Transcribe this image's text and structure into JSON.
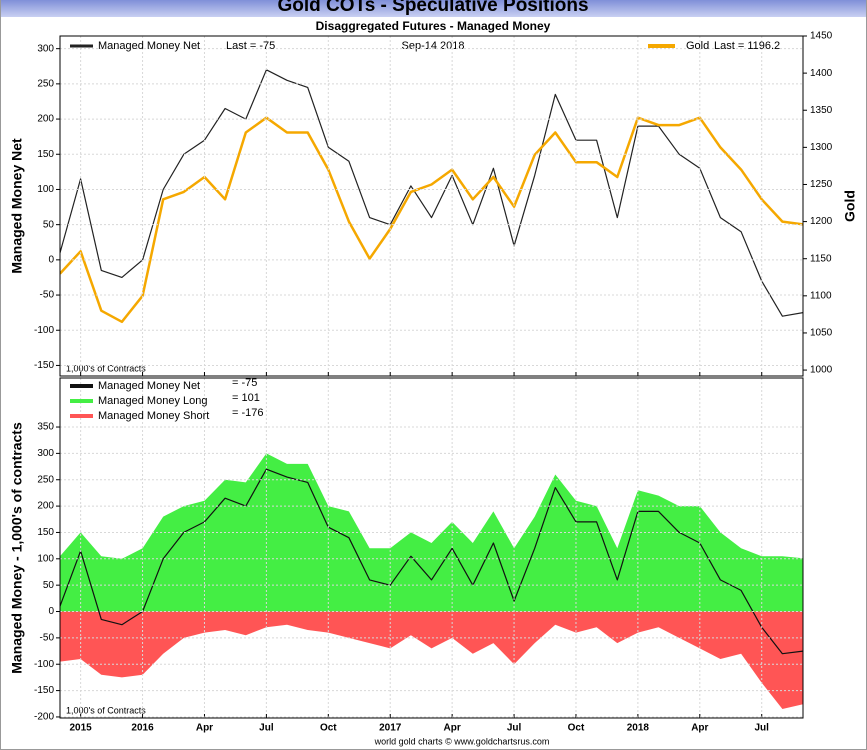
{
  "chart_data": [
    {
      "type": "line",
      "title": "Gold COTs - Speculative Positions",
      "subtitle": "Disaggregated Futures - Managed Money",
      "date_label": "Sep-14  2018",
      "note": "1,000's of Contracts",
      "ylabel": "Managed Money Net",
      "y2label": "Gold",
      "x": [
        "2015-09",
        "2015-10",
        "2015-11",
        "2015-12",
        "2016-01",
        "2016-02",
        "2016-03",
        "2016-04",
        "2016-05",
        "2016-06",
        "2016-07",
        "2016-08",
        "2016-09",
        "2016-10",
        "2016-11",
        "2016-12",
        "2017-01",
        "2017-02",
        "2017-03",
        "2017-04",
        "2017-05",
        "2017-06",
        "2017-07",
        "2017-08",
        "2017-09",
        "2017-10",
        "2017-11",
        "2017-12",
        "2018-01",
        "2018-02",
        "2018-03",
        "2018-04",
        "2018-05",
        "2018-06",
        "2018-07",
        "2018-08",
        "2018-09"
      ],
      "xlim": [
        "2015-09",
        "2018-09"
      ],
      "ylim": [
        -165,
        318
      ],
      "yticks": [
        -150,
        -100,
        -50,
        0,
        50,
        100,
        150,
        200,
        250,
        300
      ],
      "y2lim": [
        992,
        1450
      ],
      "y2ticks": [
        1000,
        1050,
        1100,
        1150,
        1200,
        1250,
        1300,
        1350,
        1400,
        1450
      ],
      "grid": true,
      "series": [
        {
          "name": "Managed Money Net",
          "last_label": "Last = -75",
          "color": "#222222",
          "style": "line",
          "axis": "y",
          "values": [
            10,
            115,
            -15,
            -25,
            0,
            100,
            150,
            170,
            215,
            200,
            270,
            255,
            245,
            160,
            140,
            60,
            50,
            105,
            60,
            120,
            50,
            130,
            20,
            120,
            235,
            170,
            170,
            60,
            190,
            190,
            150,
            130,
            60,
            40,
            -30,
            -80,
            -75
          ]
        },
        {
          "name": "Gold",
          "last_label": "Last = 1196.2",
          "color": "#f5a800",
          "style": "line",
          "axis": "y2",
          "values": [
            1130,
            1160,
            1080,
            1065,
            1100,
            1230,
            1240,
            1260,
            1230,
            1320,
            1340,
            1320,
            1320,
            1270,
            1200,
            1150,
            1190,
            1240,
            1250,
            1270,
            1230,
            1260,
            1220,
            1290,
            1320,
            1280,
            1280,
            1260,
            1340,
            1330,
            1330,
            1340,
            1300,
            1270,
            1230,
            1200,
            1196.2
          ]
        }
      ]
    },
    {
      "type": "area",
      "note": "1,000's of Contracts",
      "ylabel": "Managed Money - 1,000's of contracts",
      "footer": "world gold charts © www.goldchartsrus.com",
      "x": [
        "2015-09",
        "2015-10",
        "2015-11",
        "2015-12",
        "2016-01",
        "2016-02",
        "2016-03",
        "2016-04",
        "2016-05",
        "2016-06",
        "2016-07",
        "2016-08",
        "2016-09",
        "2016-10",
        "2016-11",
        "2016-12",
        "2017-01",
        "2017-02",
        "2017-03",
        "2017-04",
        "2017-05",
        "2017-06",
        "2017-07",
        "2017-08",
        "2017-09",
        "2017-10",
        "2017-11",
        "2017-12",
        "2018-01",
        "2018-02",
        "2018-03",
        "2018-04",
        "2018-05",
        "2018-06",
        "2018-07",
        "2018-08",
        "2018-09"
      ],
      "xlim": [
        "2015-09",
        "2018-09"
      ],
      "xticks": [
        {
          "value": "2015-10",
          "label": "2015"
        },
        {
          "value": "2016-01",
          "label": "2016"
        },
        {
          "value": "2016-04",
          "label": "Apr"
        },
        {
          "value": "2016-07",
          "label": "Jul"
        },
        {
          "value": "2016-10",
          "label": "Oct"
        },
        {
          "value": "2017-01",
          "label": "2017"
        },
        {
          "value": "2017-04",
          "label": "Apr"
        },
        {
          "value": "2017-07",
          "label": "Jul"
        },
        {
          "value": "2017-10",
          "label": "Oct"
        },
        {
          "value": "2018-01",
          "label": "2018"
        },
        {
          "value": "2018-04",
          "label": "Apr"
        },
        {
          "value": "2018-07",
          "label": "Jul"
        }
      ],
      "ylim": [
        -202,
        443
      ],
      "yticks": [
        -200,
        -150,
        -100,
        -50,
        0,
        50,
        100,
        150,
        200,
        250,
        300,
        350
      ],
      "grid": true,
      "series": [
        {
          "name": "Managed Money Long",
          "last_label": "= 101",
          "color": "#44ee44",
          "style": "area",
          "values": [
            105,
            150,
            105,
            100,
            120,
            180,
            200,
            210,
            250,
            245,
            300,
            280,
            280,
            200,
            190,
            120,
            120,
            150,
            130,
            170,
            130,
            190,
            120,
            180,
            260,
            210,
            200,
            120,
            230,
            220,
            200,
            200,
            150,
            120,
            105,
            105,
            101
          ]
        },
        {
          "name": "Managed Money Short",
          "last_label": "= -176",
          "color": "#ff5555",
          "style": "area",
          "values": [
            -95,
            -90,
            -120,
            -125,
            -120,
            -80,
            -50,
            -40,
            -35,
            -45,
            -30,
            -25,
            -35,
            -40,
            -50,
            -60,
            -70,
            -45,
            -70,
            -50,
            -80,
            -60,
            -100,
            -60,
            -25,
            -40,
            -30,
            -60,
            -40,
            -30,
            -50,
            -70,
            -90,
            -80,
            -135,
            -185,
            -176
          ]
        },
        {
          "name": "Managed Money Net",
          "last_label": "= -75",
          "color": "#111111",
          "style": "line",
          "values": [
            10,
            115,
            -15,
            -25,
            0,
            100,
            150,
            170,
            215,
            200,
            270,
            255,
            245,
            160,
            140,
            60,
            50,
            105,
            60,
            120,
            50,
            130,
            20,
            120,
            235,
            170,
            170,
            60,
            190,
            190,
            150,
            130,
            60,
            40,
            -30,
            -80,
            -75
          ]
        }
      ]
    }
  ]
}
